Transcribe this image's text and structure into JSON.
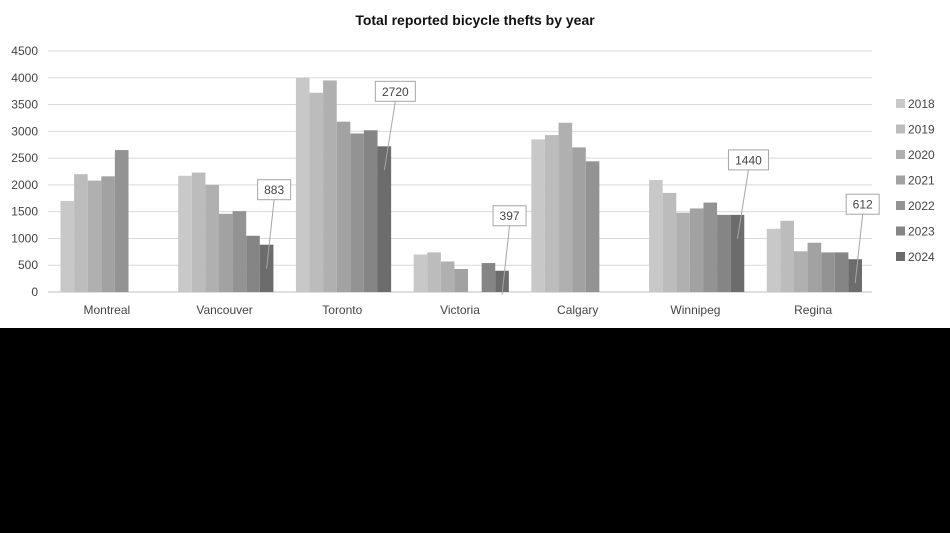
{
  "chart_data": {
    "type": "bar",
    "title": "Total reported bicycle thefts by year",
    "xlabel": "",
    "ylabel": "",
    "ylim": [
      0,
      4500
    ],
    "yticks": [
      0,
      500,
      1000,
      1500,
      2000,
      2500,
      3000,
      3500,
      4000,
      4500
    ],
    "grid": true,
    "legend_position": "right",
    "categories": [
      "Montreal",
      "Vancouver",
      "Toronto",
      "Victoria",
      "Calgary",
      "Winnipeg",
      "Regina"
    ],
    "series": [
      {
        "name": "2018",
        "color": "#c8c8c8",
        "values": [
          1700,
          2170,
          4000,
          700,
          2850,
          2090,
          1180
        ]
      },
      {
        "name": "2019",
        "color": "#bcbcbc",
        "values": [
          2200,
          2230,
          3720,
          740,
          2930,
          1850,
          1330
        ]
      },
      {
        "name": "2020",
        "color": "#b0b0b0",
        "values": [
          2080,
          2000,
          3950,
          570,
          3160,
          1480,
          760
        ]
      },
      {
        "name": "2021",
        "color": "#a2a2a2",
        "values": [
          2160,
          1460,
          3180,
          430,
          2700,
          1560,
          920
        ]
      },
      {
        "name": "2022",
        "color": "#939393",
        "values": [
          2650,
          1510,
          2960,
          null,
          2440,
          1670,
          740
        ]
      },
      {
        "name": "2023",
        "color": "#858585",
        "values": [
          null,
          1050,
          3020,
          540,
          null,
          1440,
          740
        ]
      },
      {
        "name": "2024",
        "color": "#6c6c6c",
        "values": [
          null,
          883,
          2720,
          397,
          null,
          1440,
          612
        ]
      }
    ],
    "annotations": [
      {
        "category": "Vancouver",
        "series": "2024",
        "text": "883"
      },
      {
        "category": "Toronto",
        "series": "2024",
        "text": "2720"
      },
      {
        "category": "Victoria",
        "series": "2024",
        "text": "397"
      },
      {
        "category": "Winnipeg",
        "series": "2024",
        "text": "1440"
      },
      {
        "category": "Regina",
        "series": "2024",
        "text": "612"
      }
    ]
  }
}
